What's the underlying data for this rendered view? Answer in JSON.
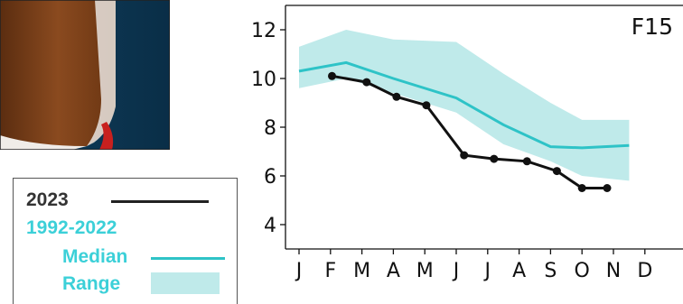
{
  "colors": {
    "obs": "#111111",
    "median": "#2ec3c7",
    "range": "#bfeaea",
    "legend_period": "#3cd0d8"
  },
  "legend": {
    "obs_label": "2023",
    "period_label": "1992-2022",
    "median_label": "Median",
    "range_label": "Range"
  },
  "chart_data": {
    "type": "line",
    "panel_label": "F15",
    "categories": [
      "J",
      "F",
      "M",
      "A",
      "M",
      "J",
      "J",
      "A",
      "S",
      "O",
      "N",
      "D"
    ],
    "ylim": [
      3.0,
      13.0
    ],
    "yticks": [
      4,
      6,
      8,
      10,
      12
    ],
    "series": [
      {
        "name": "2023",
        "x": [
          1.05,
          2.15,
          3.1,
          4.05,
          5.25,
          6.2,
          7.25,
          8.2,
          9.0,
          9.8
        ],
        "y": [
          10.1,
          9.85,
          9.25,
          8.9,
          6.85,
          6.7,
          6.6,
          6.2,
          5.5,
          5.5
        ],
        "markers": true
      },
      {
        "name": "Median",
        "x": [
          0.0,
          1.5,
          3.0,
          5.0,
          6.5,
          8.0,
          9.0,
          10.5
        ],
        "y": [
          10.3,
          10.65,
          10.0,
          9.2,
          8.1,
          7.2,
          7.15,
          7.25
        ]
      }
    ],
    "range": {
      "name": "Range",
      "x": [
        0.0,
        1.5,
        3.0,
        5.0,
        6.5,
        8.0,
        9.0,
        10.5
      ],
      "upper": [
        11.3,
        12.0,
        11.6,
        11.5,
        10.2,
        9.0,
        8.3,
        8.3
      ],
      "lower": [
        9.6,
        10.0,
        9.4,
        8.6,
        7.3,
        6.6,
        6.0,
        5.8
      ]
    }
  }
}
